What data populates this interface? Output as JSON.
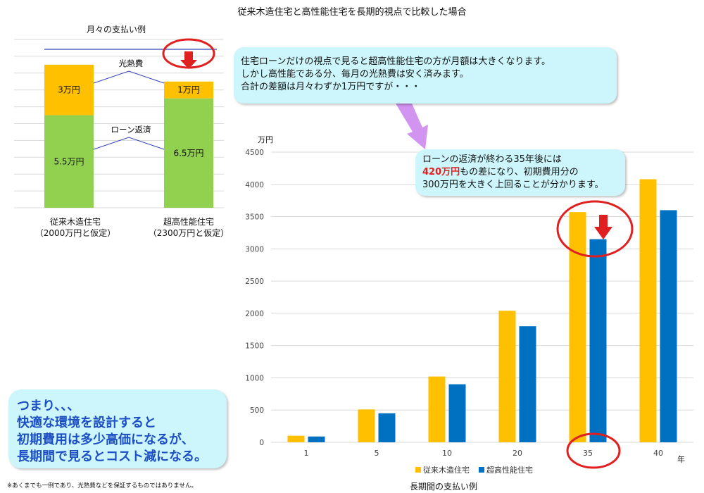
{
  "title": "従来木造住宅と高性能住宅を長期的視点で比較した場合",
  "monthly_chart": {
    "title": "月々の支払い例",
    "houses": [
      {
        "label": "従来木造住宅",
        "sublabel": "（2000万円と仮定）"
      },
      {
        "label": "超高性能住宅",
        "sublabel": "（2300万円と仮定）"
      }
    ]
  },
  "bubble_top": {
    "lines": [
      "住宅ローンだけの視点で見ると超高性能住宅の方が月額は大きくなります。",
      "しかし高性能である分、毎月の光熱費は安く済みます。",
      "合計の差額は月々わずか1万円ですが・・・"
    ]
  },
  "bubble_mid": {
    "line1": "ローンの返済が終わる35年後には",
    "highlight": "420万円",
    "line2_rest": "もの差になり、初期費用分の",
    "line3": "300万円を大きく上回ることが分かります。"
  },
  "bubble_bottom": {
    "lines": [
      "つまり、、、",
      "快適な環境を設計すると",
      "初期費用は多少高価になるが、",
      "長期間で見るとコスト減になる。"
    ]
  },
  "footnote": "※あくまでも一例であり、光熱費などを保証するものではありません。",
  "long_term": {
    "unit_label": "万円",
    "year_label": "年",
    "xaxis_title": "長期間の支払い例"
  },
  "colors": {
    "orange": "#ffc000",
    "green": "#92d050",
    "blue": "#0070c0",
    "red": "#e02020",
    "bubble": "#ccf6fb"
  },
  "chart_data": [
    {
      "type": "bar",
      "title": "月々の支払い例",
      "categories": [
        "従来木造住宅（2000万円と仮定）",
        "超高性能住宅（2300万円と仮定）"
      ],
      "stacked": true,
      "series": [
        {
          "name": "ローン返済",
          "values": [
            5.5,
            6.5
          ],
          "labels": [
            "5.5万円",
            "6.5万円"
          ],
          "color": "#92d050"
        },
        {
          "name": "光熱費",
          "values": [
            3,
            1
          ],
          "labels": [
            "3万円",
            "1万円"
          ],
          "color": "#ffc000"
        }
      ],
      "ylim": [
        0,
        10
      ],
      "grid": true,
      "annotations": [
        "光熱費",
        "ローン返済"
      ]
    },
    {
      "type": "bar",
      "title": "",
      "xlabel": "長期間の支払い例",
      "ylabel": "万円",
      "categories": [
        "1",
        "5",
        "10",
        "20",
        "35",
        "40"
      ],
      "series": [
        {
          "name": "従来木造住宅",
          "values": [
            102,
            510,
            1020,
            2040,
            3570,
            4080
          ],
          "color": "#ffc000"
        },
        {
          "name": "超高性能住宅",
          "values": [
            90,
            450,
            900,
            1800,
            3150,
            3600
          ],
          "color": "#0070c0"
        }
      ],
      "yticks": [
        0,
        500,
        1000,
        1500,
        2000,
        2500,
        3000,
        3500,
        4000,
        4500
      ],
      "ylim": [
        0,
        4500
      ],
      "grid": true,
      "legend": "bottom"
    }
  ]
}
